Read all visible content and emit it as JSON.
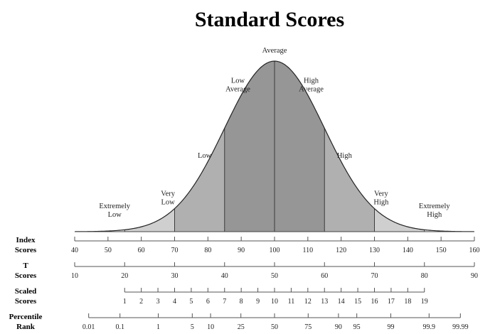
{
  "title": "Standard Scores",
  "distribution": {
    "mean": 100,
    "sd": 15,
    "domain": [
      40,
      160
    ],
    "band_edges": [
      40,
      55,
      70,
      85,
      100,
      115,
      130,
      145,
      160
    ]
  },
  "colors": {
    "band_0": "#eeeeee",
    "band_1": "#cfcfcf",
    "band_2": "#b0b0b0",
    "band_3": "#969696",
    "band_4": "#7c7c7c",
    "curve": "#222222"
  },
  "band_labels": [
    {
      "lines": [
        "Extremely",
        "Low"
      ],
      "at": 52
    },
    {
      "lines": [
        "Very",
        "Low"
      ],
      "at": 68
    },
    {
      "lines": [
        "Low"
      ],
      "at": 79
    },
    {
      "lines": [
        "Low",
        "Average"
      ],
      "at": 89
    },
    {
      "lines": [
        "Average"
      ],
      "at": 100
    },
    {
      "lines": [
        "High",
        "Average"
      ],
      "at": 111
    },
    {
      "lines": [
        "High"
      ],
      "at": 121
    },
    {
      "lines": [
        "Very",
        "High"
      ],
      "at": 132
    },
    {
      "lines": [
        "Extremely",
        "High"
      ],
      "at": 148
    }
  ],
  "scales": [
    {
      "name": "Index Scores",
      "label_lines": [
        "Index",
        "Scores"
      ],
      "ticks": [
        {
          "label": "40",
          "at": 40
        },
        {
          "label": "50",
          "at": 50
        },
        {
          "label": "60",
          "at": 60
        },
        {
          "label": "70",
          "at": 70
        },
        {
          "label": "80",
          "at": 80
        },
        {
          "label": "90",
          "at": 90
        },
        {
          "label": "100",
          "at": 100
        },
        {
          "label": "110",
          "at": 110
        },
        {
          "label": "120",
          "at": 120
        },
        {
          "label": "130",
          "at": 130
        },
        {
          "label": "140",
          "at": 140
        },
        {
          "label": "150",
          "at": 150
        },
        {
          "label": "160",
          "at": 160
        }
      ]
    },
    {
      "name": "T Scores",
      "label_lines": [
        "T",
        "Scores"
      ],
      "ticks": [
        {
          "label": "10",
          "at": 40
        },
        {
          "label": "20",
          "at": 55
        },
        {
          "label": "30",
          "at": 70
        },
        {
          "label": "40",
          "at": 85
        },
        {
          "label": "50",
          "at": 100
        },
        {
          "label": "60",
          "at": 115
        },
        {
          "label": "70",
          "at": 130
        },
        {
          "label": "80",
          "at": 145
        },
        {
          "label": "90",
          "at": 160
        }
      ]
    },
    {
      "name": "Scaled Scores",
      "label_lines": [
        "Scaled",
        "Scores"
      ],
      "ticks": [
        {
          "label": "1",
          "at": 55
        },
        {
          "label": "2",
          "at": 60
        },
        {
          "label": "3",
          "at": 65
        },
        {
          "label": "4",
          "at": 70
        },
        {
          "label": "5",
          "at": 75
        },
        {
          "label": "6",
          "at": 80
        },
        {
          "label": "7",
          "at": 85
        },
        {
          "label": "8",
          "at": 90
        },
        {
          "label": "9",
          "at": 95
        },
        {
          "label": "10",
          "at": 100
        },
        {
          "label": "11",
          "at": 105
        },
        {
          "label": "12",
          "at": 110
        },
        {
          "label": "13",
          "at": 115
        },
        {
          "label": "14",
          "at": 120
        },
        {
          "label": "15",
          "at": 125
        },
        {
          "label": "16",
          "at": 130
        },
        {
          "label": "17",
          "at": 135
        },
        {
          "label": "18",
          "at": 140
        },
        {
          "label": "19",
          "at": 145
        }
      ]
    },
    {
      "name": "Percentile Rank",
      "label_lines": [
        "Percentile",
        "Rank"
      ],
      "ticks": [
        {
          "label": "0.01",
          "at": 44.2
        },
        {
          "label": "0.1",
          "at": 53.6
        },
        {
          "label": "1",
          "at": 65.1
        },
        {
          "label": "5",
          "at": 75.3
        },
        {
          "label": "10",
          "at": 80.8
        },
        {
          "label": "25",
          "at": 89.9
        },
        {
          "label": "50",
          "at": 100
        },
        {
          "label": "75",
          "at": 110.1
        },
        {
          "label": "90",
          "at": 119.2
        },
        {
          "label": "95",
          "at": 124.7
        },
        {
          "label": "99",
          "at": 134.9
        },
        {
          "label": "99.9",
          "at": 146.4
        },
        {
          "label": "99.99",
          "at": 155.8
        }
      ]
    }
  ]
}
